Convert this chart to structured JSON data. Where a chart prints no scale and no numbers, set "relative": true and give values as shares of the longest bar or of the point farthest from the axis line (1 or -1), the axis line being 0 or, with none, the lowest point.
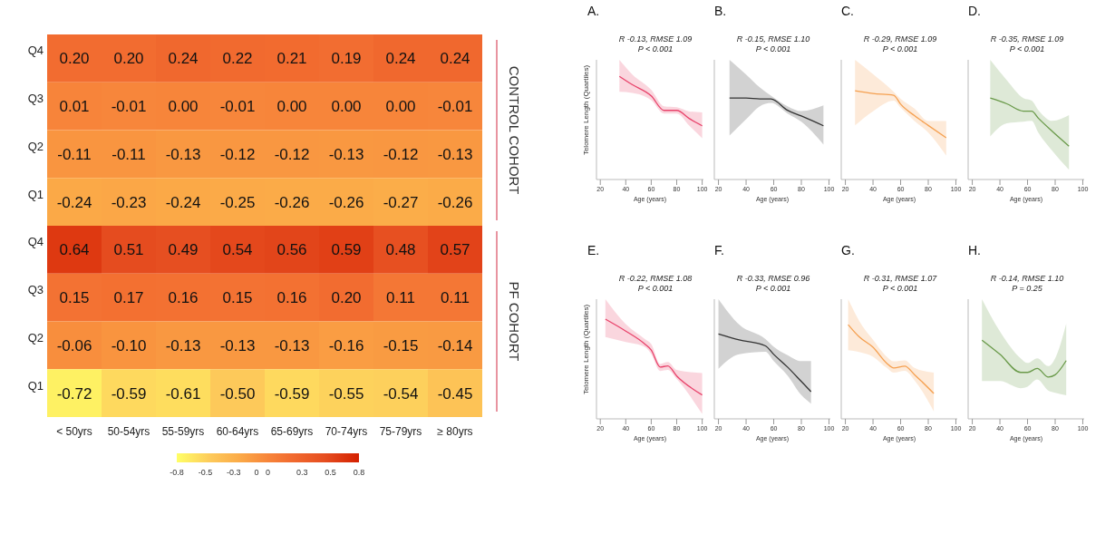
{
  "chart_data": [
    {
      "type": "heatmap",
      "categories": [
        "< 50yrs",
        "50-54yrs",
        "55-59yrs",
        "60-64yrs",
        "65-69yrs",
        "70-74yrs",
        "75-79yrs",
        "≥ 80yrs"
      ],
      "y_categories": [
        "Q4",
        "Q3",
        "Q2",
        "Q1",
        "Q4",
        "Q3",
        "Q2",
        "Q1"
      ],
      "cells": [
        [
          0.2,
          0.2,
          0.24,
          0.22,
          0.21,
          0.19,
          0.24,
          0.24
        ],
        [
          0.01,
          -0.01,
          0.0,
          -0.01,
          0.0,
          0.0,
          0.0,
          -0.01
        ],
        [
          -0.11,
          -0.11,
          -0.13,
          -0.12,
          -0.12,
          -0.13,
          -0.12,
          -0.13
        ],
        [
          -0.24,
          -0.23,
          -0.24,
          -0.25,
          -0.26,
          -0.26,
          -0.27,
          -0.26
        ],
        [
          0.64,
          0.51,
          0.49,
          0.54,
          0.56,
          0.59,
          0.48,
          0.57
        ],
        [
          0.15,
          0.17,
          0.16,
          0.15,
          0.16,
          0.2,
          0.11,
          0.11
        ],
        [
          -0.06,
          -0.1,
          -0.13,
          -0.13,
          -0.13,
          -0.16,
          -0.15,
          -0.14
        ],
        [
          -0.72,
          -0.59,
          -0.61,
          -0.5,
          -0.59,
          -0.55,
          -0.54,
          -0.45
        ]
      ],
      "cell_labels": [
        [
          "0.20",
          "0.20",
          "0.24",
          "0.22",
          "0.21",
          "0.19",
          "0.24",
          "0.24"
        ],
        [
          "0.01",
          "-0.01",
          "0.00",
          "-0.01",
          "0.00",
          "0.00",
          "0.00",
          "-0.01"
        ],
        [
          "-0.11",
          "-0.11",
          "-0.13",
          "-0.12",
          "-0.12",
          "-0.13",
          "-0.12",
          "-0.13"
        ],
        [
          "-0.24",
          "-0.23",
          "-0.24",
          "-0.25",
          "-0.26",
          "-0.26",
          "-0.27",
          "-0.26"
        ],
        [
          "0.64",
          "0.51",
          "0.49",
          "0.54",
          "0.56",
          "0.59",
          "0.48",
          "0.57"
        ],
        [
          "0.15",
          "0.17",
          "0.16",
          "0.15",
          "0.16",
          "0.20",
          "0.11",
          "0.11"
        ],
        [
          "-0.06",
          "-0.10",
          "-0.13",
          "-0.13",
          "-0.13",
          "-0.16",
          "-0.15",
          "-0.14"
        ],
        [
          "-0.72",
          "-0.59",
          "-0.61",
          "-0.50",
          "-0.59",
          "-0.55",
          "-0.54",
          "-0.45"
        ]
      ],
      "clim": [
        -0.8,
        0.8
      ],
      "cticks": [
        -0.8,
        {
          "value": -0.55,
          "label": "-0.5"
        },
        {
          "value": -0.3,
          "label": "-0.3"
        },
        {
          "value": -0.1,
          "label": "0"
        },
        0,
        0.3,
        {
          "value": 0.55,
          "label": "0.5"
        },
        0.8
      ],
      "annotations": [
        "CONTROL COHORT",
        "PF COHORT"
      ]
    },
    {
      "type": "line",
      "relative": true,
      "title": "A.",
      "xlabel": "Age (years)",
      "ylabel": "Telomere Length (Quartiles)",
      "xlim": [
        17,
        101
      ],
      "xticks": [
        20,
        40,
        60,
        80,
        100
      ],
      "annotations": [
        "R -0.13, RMSE 1.09",
        "P < 0.001"
      ],
      "series": [
        {
          "color": "#e8436b",
          "x": [
            35,
            45,
            60,
            70,
            80,
            90,
            100
          ],
          "values": [
            1,
            0.92,
            0.81,
            0.67,
            0.67,
            0.59,
            0.52
          ],
          "lower": [
            0.85,
            0.84,
            0.77,
            0.64,
            0.64,
            0.52,
            0.4
          ],
          "upper": [
            1.16,
            1.02,
            0.87,
            0.71,
            0.7,
            0.66,
            0.65
          ]
        }
      ]
    },
    {
      "type": "line",
      "relative": true,
      "title": "B.",
      "xlabel": "Age (years)",
      "xlim": [
        17,
        101
      ],
      "xticks": [
        20,
        40,
        60,
        80,
        100
      ],
      "annotations": [
        "R -0.15, RMSE 1.10",
        "P < 0.001"
      ],
      "series": [
        {
          "color": "#333333",
          "x": [
            28,
            40,
            50,
            58,
            70,
            80,
            96
          ],
          "values": [
            1,
            1,
            0.99,
            0.99,
            0.85,
            0.78,
            0.66
          ],
          "lower": [
            0.54,
            0.74,
            0.9,
            0.94,
            0.81,
            0.71,
            0.43
          ],
          "upper": [
            1.47,
            1.29,
            1.13,
            1.03,
            0.9,
            0.84,
            0.91
          ]
        }
      ]
    },
    {
      "type": "line",
      "relative": true,
      "title": "C.",
      "xlabel": "Age (years)",
      "xlim": [
        17,
        101
      ],
      "xticks": [
        20,
        40,
        60,
        80,
        100
      ],
      "annotations": [
        "R -0.29, RMSE 1.09",
        "P < 0.001"
      ],
      "series": [
        {
          "color": "#f5a050",
          "x": [
            27,
            40,
            55,
            60,
            70,
            80,
            93
          ],
          "values": [
            1,
            0.97,
            0.95,
            0.85,
            0.72,
            0.61,
            0.47
          ],
          "lower": [
            0.61,
            0.77,
            0.89,
            0.81,
            0.66,
            0.53,
            0.27
          ],
          "upper": [
            1.35,
            1.19,
            0.99,
            0.91,
            0.8,
            0.66,
            0.66
          ]
        }
      ]
    },
    {
      "type": "line",
      "relative": true,
      "title": "D.",
      "xlabel": "Age (years)",
      "xlim": [
        17,
        101
      ],
      "xticks": [
        20,
        40,
        60,
        80,
        100
      ],
      "annotations": [
        "R -0.35, RMSE 1.09",
        "P < 0.001"
      ],
      "series": [
        {
          "color": "#6a9a4a",
          "x": [
            33,
            45,
            57,
            63,
            68,
            78,
            90
          ],
          "values": [
            1,
            0.93,
            0.84,
            0.84,
            0.75,
            0.59,
            0.41
          ],
          "lower": [
            0.53,
            0.69,
            0.71,
            0.72,
            0.57,
            0.35,
            0.12
          ],
          "upper": [
            1.47,
            1.22,
            1,
            0.97,
            0.85,
            0.72,
            0.79
          ]
        }
      ]
    },
    {
      "type": "line",
      "relative": true,
      "title": "E.",
      "xlabel": "Age (years)",
      "ylabel": "Telomere Length (Quartiles)",
      "xlim": [
        17,
        101
      ],
      "xticks": [
        20,
        40,
        60,
        80,
        100
      ],
      "annotations": [
        "R -0.22, RMSE 1.08",
        "P < 0.001"
      ],
      "series": [
        {
          "color": "#e8436b",
          "x": [
            24,
            40,
            55,
            60,
            67,
            73,
            80,
            100
          ],
          "values": [
            1,
            0.88,
            0.75,
            0.69,
            0.52,
            0.53,
            0.43,
            0.24
          ],
          "lower": [
            0.82,
            0.77,
            0.72,
            0.65,
            0.48,
            0.49,
            0.4,
            0.05
          ],
          "upper": [
            1.2,
            0.95,
            0.8,
            0.75,
            0.55,
            0.57,
            0.49,
            0.46
          ]
        }
      ]
    },
    {
      "type": "line",
      "relative": true,
      "title": "F.",
      "xlabel": "Age (years)",
      "xlim": [
        17,
        101
      ],
      "xticks": [
        20,
        40,
        60,
        80,
        100
      ],
      "annotations": [
        "R -0.33, RMSE 0.96",
        "P < 0.001"
      ],
      "series": [
        {
          "color": "#333333",
          "x": [
            20,
            35,
            54,
            60,
            70,
            80,
            87
          ],
          "values": [
            1,
            0.93,
            0.86,
            0.76,
            0.61,
            0.44,
            0.32
          ],
          "lower": [
            0.59,
            0.76,
            0.79,
            0.68,
            0.51,
            0.28,
            0.18
          ],
          "upper": [
            1.41,
            1.11,
            0.94,
            0.85,
            0.75,
            0.68,
            0.68
          ]
        }
      ]
    },
    {
      "type": "line",
      "relative": true,
      "title": "G.",
      "xlabel": "Age (years)",
      "xlim": [
        17,
        101
      ],
      "xticks": [
        20,
        40,
        60,
        80,
        100
      ],
      "annotations": [
        "R -0.31, RMSE 1.07",
        "P < 0.001"
      ],
      "series": [
        {
          "color": "#f5a050",
          "x": [
            22,
            30,
            40,
            50,
            55,
            63,
            70,
            84
          ],
          "values": [
            1,
            0.87,
            0.76,
            0.59,
            0.54,
            0.56,
            0.47,
            0.27
          ],
          "lower": [
            0.73,
            0.71,
            0.66,
            0.54,
            0.49,
            0.51,
            0.41,
            0.08
          ],
          "upper": [
            1.27,
            1.04,
            0.84,
            0.66,
            0.61,
            0.62,
            0.54,
            0.49
          ]
        }
      ]
    },
    {
      "type": "line",
      "relative": true,
      "title": "H.",
      "xlabel": "Age (years)",
      "xlim": [
        17,
        101
      ],
      "xticks": [
        20,
        40,
        60,
        80,
        100
      ],
      "annotations": [
        "R -0.14, RMSE 1.10",
        "P = 0.25"
      ],
      "series": [
        {
          "color": "#6a9a4a",
          "x": [
            27,
            40,
            55,
            60,
            67,
            75,
            80,
            88
          ],
          "values": [
            1,
            0.82,
            0.59,
            0.59,
            0.64,
            0.53,
            0.56,
            0.74
          ],
          "lower": [
            0.48,
            0.48,
            0.39,
            0.41,
            0.5,
            0.36,
            0.33,
            0.3
          ],
          "upper": [
            1.52,
            1.11,
            0.77,
            0.71,
            0.77,
            0.67,
            0.77,
            1.21
          ]
        }
      ]
    }
  ]
}
